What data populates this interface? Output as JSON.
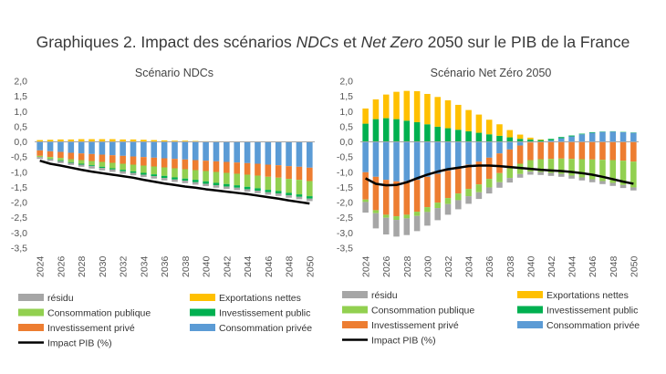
{
  "title": {
    "prefix": "Graphiques 2. Impact des scénarios ",
    "ndcs": "NDCs",
    "middle": " et ",
    "netzero": "Net Zero",
    "suffix": " 2050 sur le PIB de la France"
  },
  "colors": {
    "residu": "#a6a6a6",
    "exports": "#ffc000",
    "cons_pub": "#92d050",
    "inv_pub": "#00b050",
    "inv_priv": "#ed7d31",
    "cons_priv": "#5b9bd5",
    "pib": "#000000"
  },
  "chart_data": [
    {
      "type": "bar",
      "stacked": true,
      "title": "Scénario NDCs",
      "ylim": [
        -3.5,
        2.0
      ],
      "yticks": [
        "2,0",
        "1,5",
        "1,0",
        "0,5",
        "0,0",
        "-0,5",
        "-1,0",
        "-1,5",
        "-2,0",
        "-2,5",
        "-3,0",
        "-3,5"
      ],
      "x_tick_labels": [
        "2024",
        "2026",
        "2028",
        "2030",
        "2032",
        "2034",
        "2036",
        "2038",
        "2040",
        "2042",
        "2044",
        "2046",
        "2048",
        "2050"
      ],
      "categories": [
        2024,
        2025,
        2026,
        2027,
        2028,
        2029,
        2030,
        2031,
        2032,
        2033,
        2034,
        2035,
        2036,
        2037,
        2038,
        2039,
        2040,
        2041,
        2042,
        2043,
        2044,
        2045,
        2046,
        2047,
        2048,
        2049,
        2050
      ],
      "series": [
        {
          "name": "Consommation privée",
          "key": "cons_priv",
          "values": [
            -0.28,
            -0.31,
            -0.33,
            -0.36,
            -0.38,
            -0.4,
            -0.42,
            -0.44,
            -0.46,
            -0.48,
            -0.5,
            -0.52,
            -0.54,
            -0.56,
            -0.58,
            -0.6,
            -0.62,
            -0.64,
            -0.66,
            -0.68,
            -0.7,
            -0.72,
            -0.75,
            -0.77,
            -0.8,
            -0.82,
            -0.85
          ]
        },
        {
          "name": "Investissement privé",
          "key": "inv_priv",
          "values": [
            -0.18,
            -0.19,
            -0.2,
            -0.21,
            -0.22,
            -0.23,
            -0.24,
            -0.25,
            -0.26,
            -0.27,
            -0.28,
            -0.29,
            -0.3,
            -0.31,
            -0.32,
            -0.33,
            -0.34,
            -0.35,
            -0.36,
            -0.37,
            -0.38,
            -0.39,
            -0.4,
            -0.41,
            -0.42,
            -0.43,
            -0.44
          ]
        },
        {
          "name": "Consommation publique",
          "key": "cons_pub",
          "values": [
            -0.04,
            -0.06,
            -0.08,
            -0.1,
            -0.12,
            -0.14,
            -0.16,
            -0.18,
            -0.2,
            -0.22,
            -0.24,
            -0.26,
            -0.28,
            -0.3,
            -0.31,
            -0.32,
            -0.34,
            -0.36,
            -0.37,
            -0.38,
            -0.4,
            -0.42,
            -0.43,
            -0.44,
            -0.46,
            -0.48,
            -0.5
          ]
        },
        {
          "name": "Investissement public",
          "key": "inv_pub",
          "values": [
            0,
            -0.01,
            -0.02,
            -0.02,
            -0.03,
            -0.03,
            -0.04,
            -0.04,
            -0.05,
            -0.05,
            -0.06,
            -0.06,
            -0.07,
            -0.07,
            -0.07,
            -0.08,
            -0.08,
            -0.08,
            -0.08,
            -0.08,
            -0.08,
            -0.08,
            -0.08,
            -0.08,
            -0.08,
            -0.08,
            -0.08
          ]
        },
        {
          "name": "résidu",
          "key": "residu",
          "values": [
            -0.06,
            -0.06,
            -0.07,
            -0.07,
            -0.07,
            -0.08,
            -0.08,
            -0.08,
            -0.08,
            -0.08,
            -0.08,
            -0.08,
            -0.08,
            -0.08,
            -0.08,
            -0.08,
            -0.08,
            -0.08,
            -0.08,
            -0.08,
            -0.08,
            -0.08,
            -0.08,
            -0.08,
            -0.08,
            -0.08,
            -0.08
          ]
        },
        {
          "name": "Exportations nettes",
          "key": "exports",
          "values": [
            0.06,
            0.07,
            0.08,
            0.08,
            0.09,
            0.09,
            0.09,
            0.09,
            0.08,
            0.08,
            0.07,
            0.06,
            0.05,
            0.04,
            0.04,
            0.03,
            0.02,
            0.02,
            0.01,
            0.01,
            0.01,
            0,
            0,
            0,
            0,
            0,
            0
          ]
        }
      ],
      "pib": {
        "name": "Impact PIB (%)",
        "values": [
          -0.62,
          -0.72,
          -0.78,
          -0.85,
          -0.92,
          -0.98,
          -1.03,
          -1.08,
          -1.13,
          -1.18,
          -1.25,
          -1.31,
          -1.37,
          -1.42,
          -1.47,
          -1.51,
          -1.56,
          -1.6,
          -1.64,
          -1.68,
          -1.72,
          -1.77,
          -1.82,
          -1.87,
          -1.93,
          -1.98,
          -2.03
        ]
      }
    },
    {
      "type": "bar",
      "stacked": true,
      "title": "Scénario Net Zéro 2050",
      "ylim": [
        -3.5,
        2.0
      ],
      "yticks": [
        "2,0",
        "1,5",
        "1,0",
        "0,5",
        "0,0",
        "-0,5",
        "-1,0",
        "-1,5",
        "-2,0",
        "-2,5",
        "-3,0",
        "-3,5"
      ],
      "x_tick_labels": [
        "2024",
        "2026",
        "2028",
        "2030",
        "2032",
        "2034",
        "2036",
        "2038",
        "2040",
        "2042",
        "2044",
        "2046",
        "2048",
        "2050"
      ],
      "categories": [
        2024,
        2025,
        2026,
        2027,
        2028,
        2029,
        2030,
        2031,
        2032,
        2033,
        2034,
        2035,
        2036,
        2037,
        2038,
        2039,
        2040,
        2041,
        2042,
        2043,
        2044,
        2045,
        2046,
        2047,
        2048,
        2049,
        2050
      ],
      "series": [
        {
          "name": "Consommation privée",
          "key": "cons_priv",
          "values": [
            -1.0,
            -1.15,
            -1.25,
            -1.3,
            -1.3,
            -1.25,
            -1.15,
            -1.05,
            -0.95,
            -0.85,
            -0.75,
            -0.65,
            -0.52,
            -0.38,
            -0.25,
            -0.12,
            -0.02,
            0,
            0.05,
            0.12,
            0.18,
            0.25,
            0.3,
            0.33,
            0.34,
            0.32,
            0.3
          ]
        },
        {
          "name": "Investissement privé",
          "key": "inv_priv",
          "values": [
            -0.9,
            -1.1,
            -1.15,
            -1.15,
            -1.1,
            -1.05,
            -1.0,
            -0.95,
            -0.9,
            -0.85,
            -0.8,
            -0.75,
            -0.7,
            -0.65,
            -0.62,
            -0.6,
            -0.58,
            -0.57,
            -0.56,
            -0.55,
            -0.56,
            -0.57,
            -0.58,
            -0.59,
            -0.6,
            -0.62,
            -0.65
          ]
        },
        {
          "name": "Consommation publique",
          "key": "cons_pub",
          "values": [
            -0.08,
            -0.1,
            -0.1,
            -0.12,
            -0.12,
            -0.14,
            -0.16,
            -0.18,
            -0.2,
            -0.22,
            -0.24,
            -0.26,
            -0.28,
            -0.3,
            -0.32,
            -0.34,
            -0.38,
            -0.42,
            -0.46,
            -0.5,
            -0.55,
            -0.6,
            -0.65,
            -0.7,
            -0.75,
            -0.8,
            -0.85
          ]
        },
        {
          "name": "Investissement public",
          "key": "inv_pub",
          "values": [
            0.6,
            0.75,
            0.78,
            0.75,
            0.7,
            0.65,
            0.58,
            0.5,
            0.45,
            0.4,
            0.35,
            0.3,
            0.25,
            0.2,
            0.15,
            0.1,
            0.08,
            0.06,
            0.05,
            0.04,
            0.03,
            0.02,
            0.02,
            0.01,
            0.01,
            0.01,
            0.01
          ]
        },
        {
          "name": "Exportations nettes",
          "key": "exports",
          "values": [
            0.5,
            0.65,
            0.78,
            0.9,
            0.98,
            1.02,
            1.0,
            0.98,
            0.92,
            0.82,
            0.7,
            0.6,
            0.48,
            0.38,
            0.24,
            0.14,
            0.06,
            0.02,
            0,
            0,
            0,
            0,
            0,
            0,
            0,
            0,
            0
          ]
        },
        {
          "name": "résidu",
          "key": "residu",
          "values": [
            -0.35,
            -0.5,
            -0.55,
            -0.55,
            -0.55,
            -0.5,
            -0.45,
            -0.4,
            -0.35,
            -0.3,
            -0.25,
            -0.22,
            -0.2,
            -0.18,
            -0.15,
            -0.12,
            -0.1,
            -0.1,
            -0.1,
            -0.1,
            -0.1,
            -0.1,
            -0.1,
            -0.1,
            -0.1,
            -0.1,
            -0.1
          ]
        }
      ],
      "pib": {
        "name": "Impact PIB (%)",
        "values": [
          -1.2,
          -1.38,
          -1.43,
          -1.42,
          -1.33,
          -1.2,
          -1.08,
          -0.98,
          -0.9,
          -0.85,
          -0.8,
          -0.78,
          -0.78,
          -0.8,
          -0.83,
          -0.86,
          -0.89,
          -0.92,
          -0.94,
          -0.96,
          -0.99,
          -1.03,
          -1.08,
          -1.15,
          -1.23,
          -1.31,
          -1.38
        ]
      }
    }
  ],
  "legend": {
    "residu": "résidu",
    "exports": "Exportations nettes",
    "cons_pub": "Consommation publique",
    "inv_pub": "Investissement public",
    "inv_priv": "Investissement privé",
    "cons_priv": "Consommation privée",
    "pib": "Impact PIB (%)"
  }
}
